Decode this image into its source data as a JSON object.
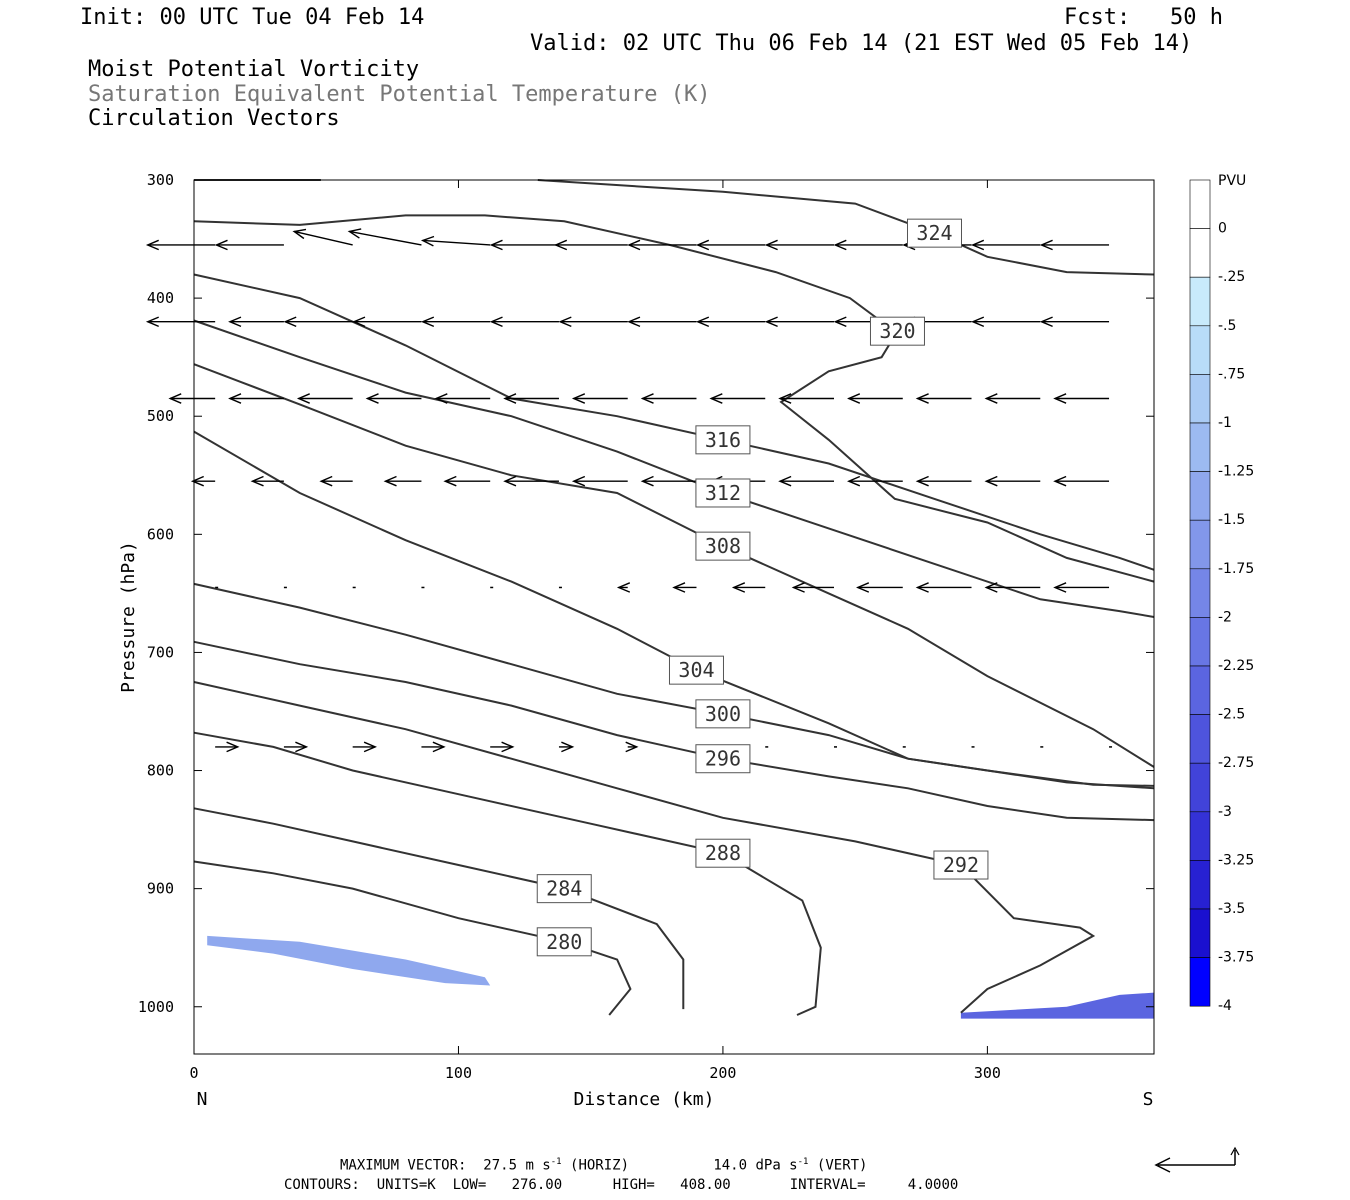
{
  "header": {
    "init": "Init: 00 UTC Tue 04 Feb 14",
    "fcst": "Fcst:   50 h",
    "valid": "Valid: 02 UTC Thu 06 Feb 14 (21 EST Wed 05 Feb 14)",
    "field1": "Moist Potential Vorticity",
    "field2": "Saturation Equivalent Potential Temperature (K)",
    "field3": "Circulation Vectors"
  },
  "footer": {
    "max_vector_label": "MAXIMUM VECTOR:",
    "max_horiz": "27.5 m s",
    "horiz_tag": "(HORIZ)",
    "max_vert": "14.0 dPa s",
    "vert_tag": "(VERT)",
    "exp": "-1",
    "contours": "CONTOURS:  UNITS=K  LOW=   276.00      HIGH=   408.00       INTERVAL=     4.0000"
  },
  "colors": {
    "contour": "#333333",
    "vector": "#000000",
    "pv_light": "#bfe6fb",
    "pv_dark": "#0000ff"
  },
  "chart_data": {
    "type": "cross-section",
    "xlabel": "Distance (km)",
    "ylabel": "Pressure (hPa)",
    "x_range": [
      0,
      363
    ],
    "y_range": [
      300,
      1040
    ],
    "x_ticks": [
      "0",
      "100",
      "200",
      "300"
    ],
    "x_tick_values": [
      0,
      100,
      200,
      300
    ],
    "y_ticks": [
      "300",
      "400",
      "500",
      "600",
      "700",
      "800",
      "900",
      "1000"
    ],
    "y_tick_values": [
      300,
      400,
      500,
      600,
      700,
      800,
      900,
      1000
    ],
    "end_labels": [
      "N",
      "S"
    ],
    "colorbar": {
      "title": "PVU",
      "levels": [
        "0",
        "-.25",
        "-.5",
        "-.75",
        "-1",
        "-1.25",
        "-1.5",
        "-1.75",
        "-2",
        "-2.25",
        "-2.5",
        "-2.75",
        "-3",
        "-3.25",
        "-3.5",
        "-3.75",
        "-4"
      ],
      "colors": [
        "#ffffff",
        "#ffffff",
        "#c8eafb",
        "#b8dcf8",
        "#aacbf4",
        "#9cbaf1",
        "#8fa8ee",
        "#8297ea",
        "#7586e7",
        "#6876e4",
        "#5b65e0",
        "#4e54dd",
        "#4143d9",
        "#3432d6",
        "#2721d2",
        "#1a10cf",
        "#0000ff"
      ]
    },
    "contours": [
      {
        "label": "280",
        "points": [
          [
            0,
            877
          ],
          [
            30,
            887
          ],
          [
            60,
            900
          ],
          [
            100,
            925
          ],
          [
            140,
            945
          ],
          [
            160,
            960
          ],
          [
            165,
            985
          ],
          [
            157,
            1007
          ]
        ]
      },
      {
        "label": "284",
        "points": [
          [
            0,
            832
          ],
          [
            30,
            845
          ],
          [
            60,
            860
          ],
          [
            100,
            880
          ],
          [
            140,
            900
          ],
          [
            175,
            930
          ],
          [
            185,
            960
          ],
          [
            185,
            1002
          ]
        ]
      },
      {
        "label": "288",
        "points": [
          [
            0,
            768
          ],
          [
            30,
            780
          ],
          [
            60,
            800
          ],
          [
            100,
            820
          ],
          [
            150,
            845
          ],
          [
            200,
            870
          ],
          [
            230,
            910
          ],
          [
            237,
            950
          ],
          [
            235,
            1000
          ],
          [
            228,
            1007
          ]
        ]
      },
      {
        "label": "292",
        "points": [
          [
            0,
            725
          ],
          [
            40,
            745
          ],
          [
            80,
            765
          ],
          [
            120,
            790
          ],
          [
            160,
            815
          ],
          [
            200,
            840
          ],
          [
            250,
            860
          ],
          [
            290,
            880
          ],
          [
            310,
            925
          ],
          [
            335,
            933
          ],
          [
            340,
            940
          ],
          [
            320,
            965
          ],
          [
            300,
            985
          ],
          [
            290,
            1005
          ]
        ]
      },
      {
        "label": "296",
        "points": [
          [
            0,
            691
          ],
          [
            40,
            710
          ],
          [
            80,
            725
          ],
          [
            120,
            745
          ],
          [
            160,
            770
          ],
          [
            200,
            790
          ],
          [
            240,
            805
          ],
          [
            270,
            815
          ],
          [
            300,
            830
          ],
          [
            330,
            840
          ],
          [
            363,
            842
          ]
        ]
      },
      {
        "label": "300",
        "points": [
          [
            0,
            642
          ],
          [
            40,
            662
          ],
          [
            80,
            685
          ],
          [
            120,
            710
          ],
          [
            160,
            735
          ],
          [
            200,
            752
          ],
          [
            240,
            770
          ],
          [
            270,
            790
          ],
          [
            300,
            800
          ],
          [
            330,
            810
          ],
          [
            363,
            815
          ]
        ]
      },
      {
        "label": "304",
        "points": [
          [
            0,
            513
          ],
          [
            40,
            565
          ],
          [
            80,
            605
          ],
          [
            120,
            640
          ],
          [
            160,
            680
          ],
          [
            190,
            715
          ],
          [
            240,
            760
          ],
          [
            270,
            790
          ],
          [
            300,
            800
          ],
          [
            340,
            812
          ],
          [
            363,
            813
          ]
        ]
      },
      {
        "label": "308",
        "points": [
          [
            0,
            456
          ],
          [
            40,
            490
          ],
          [
            80,
            525
          ],
          [
            120,
            550
          ],
          [
            160,
            565
          ],
          [
            200,
            610
          ],
          [
            240,
            650
          ],
          [
            270,
            680
          ],
          [
            300,
            720
          ],
          [
            340,
            765
          ],
          [
            363,
            797
          ]
        ]
      },
      {
        "label": "312",
        "points": [
          [
            0,
            419
          ],
          [
            40,
            450
          ],
          [
            80,
            480
          ],
          [
            120,
            500
          ],
          [
            160,
            530
          ],
          [
            200,
            565
          ],
          [
            240,
            595
          ],
          [
            280,
            625
          ],
          [
            320,
            655
          ],
          [
            350,
            665
          ],
          [
            363,
            670
          ]
        ]
      },
      {
        "label": "316",
        "points": [
          [
            0,
            380
          ],
          [
            40,
            400
          ],
          [
            80,
            440
          ],
          [
            120,
            485
          ],
          [
            160,
            500
          ],
          [
            200,
            520
          ],
          [
            240,
            540
          ],
          [
            280,
            570
          ],
          [
            320,
            600
          ],
          [
            350,
            620
          ],
          [
            363,
            630
          ]
        ]
      },
      {
        "label": "320",
        "points": [
          [
            0,
            335
          ],
          [
            40,
            338
          ],
          [
            80,
            330
          ],
          [
            110,
            330
          ],
          [
            140,
            335
          ],
          [
            180,
            355
          ],
          [
            220,
            378
          ],
          [
            248,
            400
          ],
          [
            260,
            420
          ],
          [
            266,
            428
          ],
          [
            260,
            450
          ],
          [
            240,
            462
          ],
          [
            222,
            488
          ],
          [
            240,
            520
          ],
          [
            265,
            570
          ],
          [
            300,
            590
          ],
          [
            330,
            620
          ],
          [
            363,
            640
          ]
        ]
      },
      {
        "label": "324",
        "points": [
          [
            130,
            300
          ],
          [
            200,
            310
          ],
          [
            250,
            320
          ],
          [
            280,
            345
          ],
          [
            300,
            365
          ],
          [
            330,
            378
          ],
          [
            363,
            380
          ]
        ]
      },
      {
        "label": "",
        "points": [
          [
            0,
            300
          ],
          [
            48,
            300
          ]
        ]
      }
    ],
    "pv_shading": [
      {
        "level": "-.25",
        "points": [
          [
            0,
            925
          ],
          [
            40,
            930
          ],
          [
            80,
            945
          ],
          [
            100,
            955
          ],
          [
            115,
            970
          ],
          [
            120,
            985
          ],
          [
            100,
            985
          ],
          [
            60,
            965
          ],
          [
            20,
            950
          ],
          [
            0,
            945
          ]
        ]
      },
      {
        "level": "-1.5",
        "points": [
          [
            5,
            940
          ],
          [
            40,
            945
          ],
          [
            80,
            960
          ],
          [
            110,
            975
          ],
          [
            112,
            982
          ],
          [
            95,
            980
          ],
          [
            60,
            968
          ],
          [
            30,
            955
          ],
          [
            5,
            948
          ]
        ]
      },
      {
        "level": "-.25",
        "points": [
          [
            245,
            1005
          ],
          [
            270,
            1002
          ],
          [
            280,
            985
          ],
          [
            290,
            992
          ],
          [
            320,
            990
          ],
          [
            340,
            980
          ],
          [
            350,
            960
          ],
          [
            363,
            925
          ],
          [
            363,
            1010
          ],
          [
            245,
            1010
          ]
        ]
      },
      {
        "level": "-2.5",
        "points": [
          [
            290,
            1005
          ],
          [
            330,
            1000
          ],
          [
            350,
            990
          ],
          [
            363,
            988
          ],
          [
            363,
            1010
          ],
          [
            290,
            1010
          ]
        ]
      }
    ],
    "vector_rows": [
      {
        "p": 355,
        "u": [
          -15,
          -15,
          -13,
          -16,
          -15,
          -15,
          -16,
          -15,
          -15,
          -15,
          -15,
          -15,
          -15,
          -15
        ],
        "w": [
          0,
          0,
          -3,
          -3,
          -1,
          0,
          0,
          0,
          0,
          0,
          0,
          0,
          0,
          0
        ]
      },
      {
        "p": 420,
        "u": [
          -15,
          -12,
          -15,
          -15,
          -15,
          -15,
          -15,
          -15,
          -15,
          -15,
          -15,
          -15,
          -15,
          -15
        ],
        "w": [
          0,
          0,
          0,
          0,
          0,
          0,
          0,
          0,
          0,
          0,
          0,
          0,
          0,
          0
        ]
      },
      {
        "p": 485,
        "u": [
          -10,
          -12,
          -12,
          -12,
          -12,
          -12,
          -12,
          -12,
          -12,
          -12,
          -12,
          -12,
          -12,
          -12
        ],
        "w": [
          0,
          0,
          0,
          0,
          0,
          0,
          0,
          0,
          0,
          0,
          0,
          0,
          0,
          0
        ]
      },
      {
        "p": 555,
        "u": [
          -5,
          -7,
          -7,
          -8,
          -10,
          -12,
          -12,
          -12,
          -12,
          -12,
          -12,
          -12,
          -12,
          -12
        ],
        "w": [
          0,
          0,
          0,
          0,
          0,
          0,
          0,
          0,
          0,
          0,
          0,
          0,
          0,
          0
        ]
      },
      {
        "p": 645,
        "u": [
          0,
          0,
          0,
          0,
          0,
          0,
          -2,
          -5,
          -7,
          -9,
          -10,
          -12,
          -12,
          -12
        ],
        "w": [
          0,
          0,
          0,
          0,
          0,
          0,
          0,
          0,
          0,
          0,
          0,
          0,
          0,
          0
        ]
      },
      {
        "p": 780,
        "u": [
          5,
          5,
          5,
          5,
          5,
          3,
          2,
          0,
          0,
          0,
          0,
          0,
          0,
          0
        ],
        "w": [
          0,
          0,
          0,
          0,
          0,
          0,
          0,
          0,
          0,
          0,
          0,
          0,
          0,
          0
        ]
      }
    ],
    "colorbar_title": "PVU"
  }
}
